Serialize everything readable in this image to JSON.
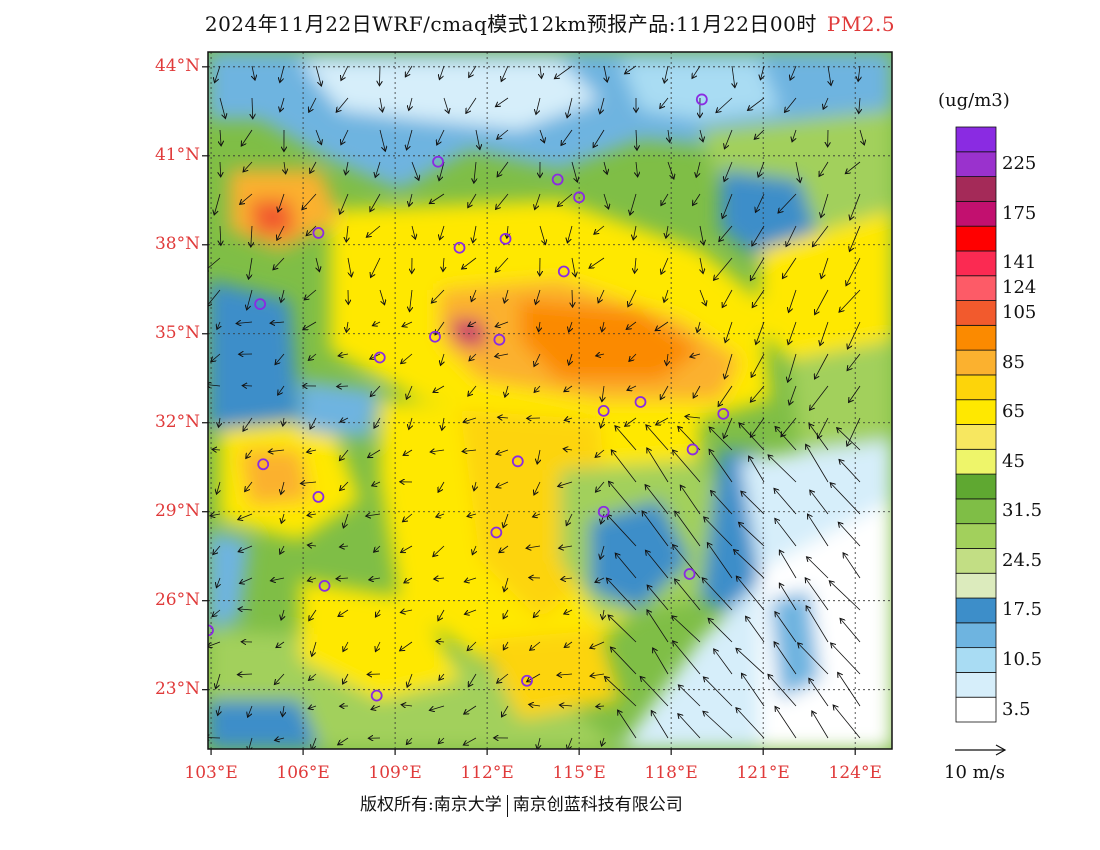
{
  "title": "2024年11月22日WRF/cmaq模式12km预报产品:11月22日00时",
  "pollutant": "PM2.5",
  "lat_ticks": [
    {
      "value": 44,
      "label": "44°N"
    },
    {
      "value": 41,
      "label": "41°N"
    },
    {
      "value": 38,
      "label": "38°N"
    },
    {
      "value": 35,
      "label": "35°N"
    },
    {
      "value": 32,
      "label": "32°N"
    },
    {
      "value": 29,
      "label": "29°N"
    },
    {
      "value": 26,
      "label": "26°N"
    },
    {
      "value": 23,
      "label": "23°N"
    }
  ],
  "lon_ticks": [
    {
      "value": 103,
      "label": "103°E"
    },
    {
      "value": 106,
      "label": "106°E"
    },
    {
      "value": 109,
      "label": "109°E"
    },
    {
      "value": 112,
      "label": "112°E"
    },
    {
      "value": 115,
      "label": "115°E"
    },
    {
      "value": 118,
      "label": "118°E"
    },
    {
      "value": 121,
      "label": "121°E"
    },
    {
      "value": 124,
      "label": "124°E"
    }
  ],
  "extent": {
    "lon_min": 102.9,
    "lon_max": 125.2,
    "lat_min": 21.0,
    "lat_max": 44.5
  },
  "legend": {
    "unit": "(ug/m3)",
    "colors": [
      "#ffffff",
      "#d6eefa",
      "#a9dcf3",
      "#6eb4e0",
      "#3d8ec9",
      "#dcebbd",
      "#c2de84",
      "#a2d05c",
      "#7fbe46",
      "#5fa831",
      "#eef56a",
      "#f7e760",
      "#ffe800",
      "#fdd40a",
      "#fbb12f",
      "#fb8a00",
      "#f25a2d",
      "#fd5b67",
      "#fb2a52",
      "#ff0000",
      "#c2106f",
      "#a42a58",
      "#9a32cd",
      "#8a2be2"
    ],
    "labels": [
      {
        "text": "3.5",
        "index": 0
      },
      {
        "text": "10.5",
        "index": 2
      },
      {
        "text": "17.5",
        "index": 4
      },
      {
        "text": "24.5",
        "index": 6
      },
      {
        "text": "31.5",
        "index": 8
      },
      {
        "text": "45",
        "index": 10
      },
      {
        "text": "65",
        "index": 12
      },
      {
        "text": "85",
        "index": 14
      },
      {
        "text": "105",
        "index": 16
      },
      {
        "text": "124",
        "index": 17
      },
      {
        "text": "141",
        "index": 18
      },
      {
        "text": "175",
        "index": 20
      },
      {
        "text": "225",
        "index": 22
      }
    ]
  },
  "wind_ref": "10 m/s",
  "copyright_left": "版权所有:南京大学",
  "copyright_right": "南京创蓝科技有限公司",
  "stations": [
    {
      "lon": 119.0,
      "lat": 42.9
    },
    {
      "lon": 110.4,
      "lat": 40.8
    },
    {
      "lon": 114.3,
      "lat": 40.2
    },
    {
      "lon": 115.0,
      "lat": 39.6
    },
    {
      "lon": 106.5,
      "lat": 38.4
    },
    {
      "lon": 111.1,
      "lat": 37.9
    },
    {
      "lon": 112.6,
      "lat": 38.2
    },
    {
      "lon": 114.5,
      "lat": 37.1
    },
    {
      "lon": 104.6,
      "lat": 36.0
    },
    {
      "lon": 110.3,
      "lat": 34.9
    },
    {
      "lon": 112.4,
      "lat": 34.8
    },
    {
      "lon": 108.5,
      "lat": 34.2
    },
    {
      "lon": 117.0,
      "lat": 32.7
    },
    {
      "lon": 115.8,
      "lat": 32.4
    },
    {
      "lon": 119.7,
      "lat": 32.3
    },
    {
      "lon": 118.7,
      "lat": 31.1
    },
    {
      "lon": 104.7,
      "lat": 30.6
    },
    {
      "lon": 113.0,
      "lat": 30.7
    },
    {
      "lon": 106.5,
      "lat": 29.5
    },
    {
      "lon": 115.8,
      "lat": 29.0
    },
    {
      "lon": 112.3,
      "lat": 28.3
    },
    {
      "lon": 106.7,
      "lat": 26.5
    },
    {
      "lon": 118.6,
      "lat": 26.9
    },
    {
      "lon": 102.9,
      "lat": 25.0
    },
    {
      "lon": 113.3,
      "lat": 23.3
    },
    {
      "lon": 108.4,
      "lat": 22.8
    }
  ]
}
